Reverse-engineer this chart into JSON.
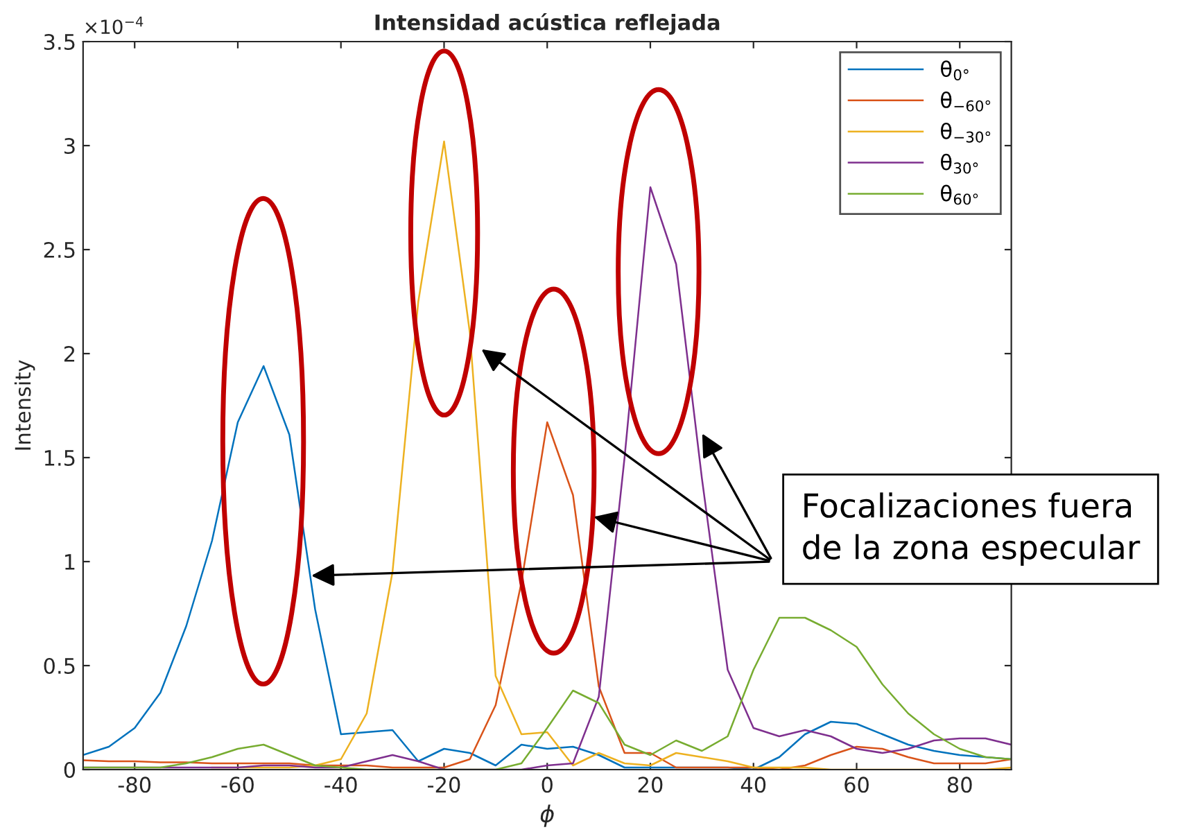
{
  "chart_data": {
    "type": "line",
    "title": "Intensidad acústica reflejada",
    "xlabel": "ϕ",
    "ylabel": "Intensity",
    "x": [
      -90,
      -85,
      -80,
      -75,
      -70,
      -65,
      -60,
      -55,
      -50,
      -45,
      -40,
      -35,
      -30,
      -25,
      -20,
      -15,
      -10,
      -5,
      0,
      5,
      10,
      15,
      20,
      25,
      30,
      35,
      40,
      45,
      50,
      55,
      60,
      65,
      70,
      75,
      80,
      85,
      90
    ],
    "series": [
      {
        "name": "θ$_{0°}$",
        "color": "#0072bd",
        "values": [
          0.07,
          0.11,
          0.2,
          0.37,
          0.69,
          1.1,
          1.67,
          1.94,
          1.61,
          0.77,
          0.17,
          0.18,
          0.19,
          0.04,
          0.1,
          0.08,
          0.02,
          0.12,
          0.1,
          0.11,
          0.07,
          0.01,
          0.01,
          0.01,
          0.01,
          0.01,
          0.0,
          0.06,
          0.17,
          0.23,
          0.22,
          0.17,
          0.12,
          0.09,
          0.07,
          0.06,
          0.05
        ]
      },
      {
        "name": "θ$_{−60°}$",
        "color": "#d95319",
        "values": [
          0.045,
          0.04,
          0.04,
          0.035,
          0.035,
          0.03,
          0.03,
          0.03,
          0.03,
          0.02,
          0.02,
          0.02,
          0.01,
          0.01,
          0.01,
          0.05,
          0.31,
          0.9,
          1.67,
          1.32,
          0.4,
          0.08,
          0.08,
          0.01,
          0.01,
          0.01,
          0.01,
          0.0,
          0.02,
          0.07,
          0.11,
          0.1,
          0.06,
          0.03,
          0.03,
          0.03,
          0.05
        ]
      },
      {
        "name": "θ$_{−30°}$",
        "color": "#edb120",
        "values": [
          null,
          null,
          null,
          null,
          null,
          0.01,
          0.01,
          0.01,
          0.01,
          0.02,
          0.05,
          0.27,
          0.95,
          2.25,
          3.02,
          2.1,
          0.45,
          0.17,
          0.18,
          0.02,
          0.08,
          0.03,
          0.02,
          0.08,
          0.06,
          0.04,
          0.01,
          0.01,
          0.01,
          0.0,
          0.0,
          0.0,
          0.0,
          0.0,
          0.0,
          0.0,
          0.01
        ]
      },
      {
        "name": "θ$_{30°}$",
        "color": "#7e2f8e",
        "values": [
          0.01,
          0.01,
          0.01,
          0.01,
          0.01,
          0.01,
          0.01,
          0.02,
          0.02,
          0.01,
          0.01,
          0.04,
          0.07,
          0.04,
          0.0,
          0.0,
          0.0,
          0.0,
          0.02,
          0.03,
          0.35,
          1.5,
          2.8,
          2.43,
          1.4,
          0.48,
          0.2,
          0.16,
          0.19,
          0.16,
          0.1,
          0.08,
          0.1,
          0.14,
          0.15,
          0.15,
          0.12
        ]
      },
      {
        "name": "θ$_{60°}$",
        "color": "#77ac30",
        "values": [
          0.01,
          0.01,
          0.01,
          0.01,
          0.03,
          0.06,
          0.1,
          0.12,
          0.07,
          0.02,
          0.01,
          0.0,
          0.0,
          0.0,
          0.0,
          0.0,
          0.0,
          0.03,
          0.2,
          0.38,
          0.32,
          0.12,
          0.07,
          0.14,
          0.09,
          0.16,
          0.48,
          0.73,
          0.73,
          0.67,
          0.59,
          0.41,
          0.27,
          0.17,
          0.1,
          0.06,
          0.05
        ]
      }
    ],
    "xlim": [
      -90,
      90
    ],
    "xticks": [
      -80,
      -60,
      -40,
      -20,
      0,
      20,
      40,
      60,
      80
    ],
    "ylim": [
      0,
      3.5
    ],
    "yticks": [
      0,
      0.5,
      1,
      1.5,
      2,
      2.5,
      3,
      3.5
    ],
    "legend": "top right",
    "grid": false,
    "annotations": [
      "×10$^{−4}$",
      "Focalizaciones fuera\nde la zona especular"
    ]
  }
}
